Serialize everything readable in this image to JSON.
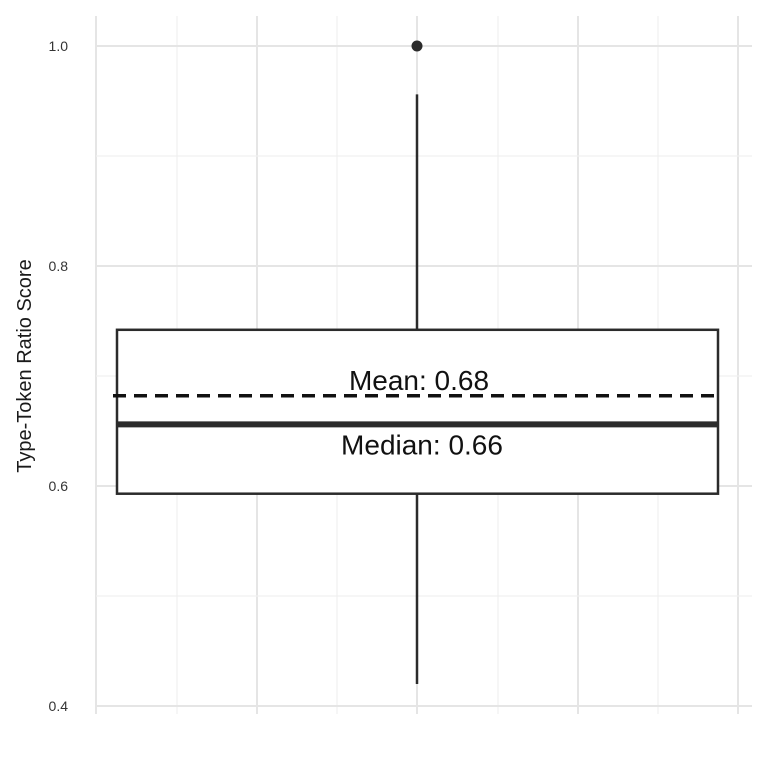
{
  "chart_data": {
    "type": "box",
    "ylabel": "Type-Token Ratio Score",
    "ylim": [
      0.4,
      1.0
    ],
    "y_ticks": [
      0.4,
      0.6,
      0.8,
      1.0
    ],
    "y_tick_labels": [
      "0.4",
      "0.6",
      "0.8",
      "1.0"
    ],
    "grid": true,
    "box": {
      "q1": 0.593,
      "median": 0.656,
      "q3": 0.742,
      "whisker_low": 0.42,
      "whisker_high": 0.956,
      "mean": 0.682,
      "outliers": [
        1.0
      ]
    },
    "annotations": {
      "mean": "Mean: 0.68",
      "median": "Median: 0.66"
    },
    "colors": {
      "box_stroke": "#2b2b2b",
      "grid": "#e5e5e5",
      "outlier": "#2b2b2b"
    }
  }
}
